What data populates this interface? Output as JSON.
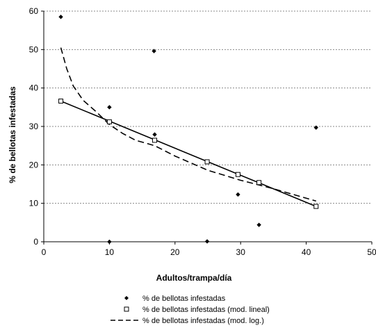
{
  "chart_data": {
    "type": "scatter",
    "xlabel": "Adultos/trampa/día",
    "ylabel": "% de bellotas infestadas",
    "xlim": [
      0,
      50
    ],
    "ylim": [
      0,
      60
    ],
    "x_ticks": [
      0,
      10,
      20,
      30,
      40,
      50
    ],
    "y_ticks": [
      0,
      10,
      20,
      30,
      40,
      50,
      60
    ],
    "grid": "horizontal dotted",
    "legend_position": "bottom",
    "series": [
      {
        "name": "% de bellotas infestadas",
        "style": "markers-diamond-filled",
        "color": "#000000",
        "points": [
          [
            2.6,
            58.5
          ],
          [
            10.0,
            35.0
          ],
          [
            10.0,
            0.0
          ],
          [
            16.8,
            49.6
          ],
          [
            16.9,
            27.9
          ],
          [
            24.9,
            0.1
          ],
          [
            29.6,
            12.3
          ],
          [
            32.8,
            4.4
          ],
          [
            41.5,
            29.7
          ]
        ]
      },
      {
        "name": "% de bellotas infestadas (mod. lineal)",
        "style": "markers-square-open-solid-line",
        "color": "#000000",
        "points": [
          [
            2.6,
            36.6
          ],
          [
            10.0,
            31.2
          ],
          [
            16.9,
            26.4
          ],
          [
            24.9,
            20.8
          ],
          [
            29.6,
            17.5
          ],
          [
            32.8,
            15.4
          ],
          [
            41.5,
            9.2
          ]
        ]
      },
      {
        "name": "% de bellotas infestadas (mod. log.)",
        "style": "dashed-line",
        "color": "#000000",
        "points": [
          [
            2.6,
            50.5
          ],
          [
            3.5,
            45.0
          ],
          [
            4.5,
            40.5
          ],
          [
            6.0,
            36.8
          ],
          [
            8.0,
            33.8
          ],
          [
            10.0,
            30.5
          ],
          [
            12.0,
            28.2
          ],
          [
            14.0,
            26.4
          ],
          [
            16.9,
            25.0
          ],
          [
            20.0,
            22.3
          ],
          [
            25.0,
            18.6
          ],
          [
            30.0,
            16.0
          ],
          [
            35.0,
            13.8
          ],
          [
            41.5,
            10.6
          ]
        ]
      }
    ]
  }
}
